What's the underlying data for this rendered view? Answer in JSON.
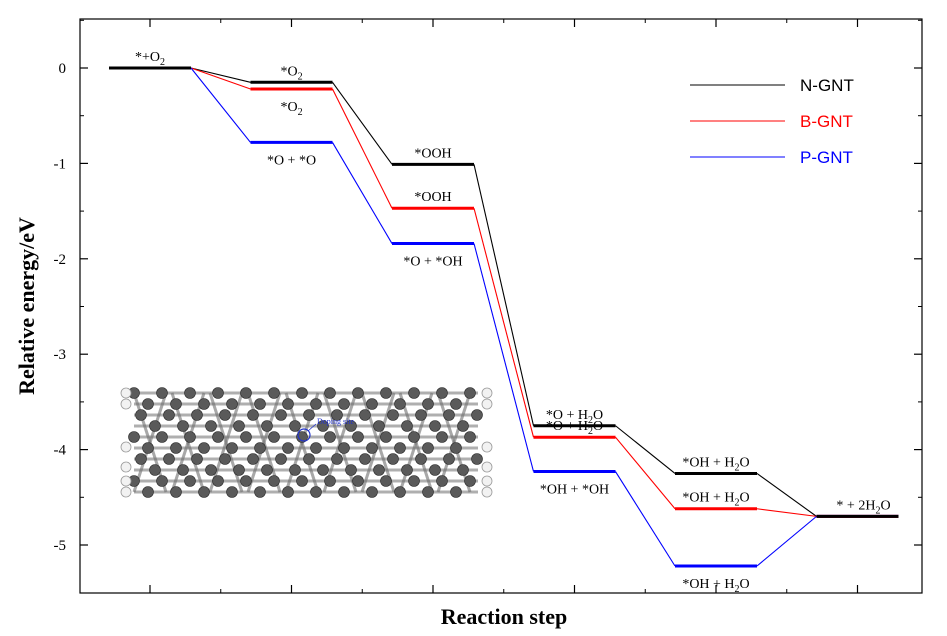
{
  "chart_data": {
    "type": "line",
    "xlabel": "Reaction step",
    "ylabel": "Relative energy/eV",
    "ylim": [
      -5.5,
      0.5
    ],
    "yticks": [
      0,
      -1,
      -2,
      -3,
      -4,
      -5
    ],
    "ytick_labels": [
      "0",
      "-1",
      "-2",
      "-3",
      "-4",
      "-5"
    ],
    "step_count": 6,
    "series": [
      {
        "name": "N-GNT",
        "color": "#000000",
        "values": [
          0,
          -0.15,
          -1.01,
          -3.75,
          -4.25,
          -4.7
        ]
      },
      {
        "name": "B-GNT",
        "color": "#ff0000",
        "values": [
          0,
          -0.22,
          -1.47,
          -3.87,
          -4.62,
          -4.7
        ]
      },
      {
        "name": "P-GNT",
        "color": "#0000ff",
        "values": [
          0,
          -0.78,
          -1.84,
          -4.23,
          -5.22,
          -4.7
        ]
      }
    ],
    "legend_position": "top-right",
    "grid": false,
    "annotations": [
      {
        "step": 0,
        "series": 0,
        "base": "*+O",
        "sub": "2",
        "tail": ""
      },
      {
        "step": 1,
        "series": 0,
        "base": "*O",
        "sub": "2",
        "tail": ""
      },
      {
        "step": 1,
        "series": 1,
        "base": "*O",
        "sub": "2",
        "tail": ""
      },
      {
        "step": 1,
        "series": 2,
        "base": "*O + *O",
        "sub": "",
        "tail": ""
      },
      {
        "step": 2,
        "series": 0,
        "base": "*OOH",
        "sub": "",
        "tail": ""
      },
      {
        "step": 2,
        "series": 1,
        "base": "*OOH",
        "sub": "",
        "tail": ""
      },
      {
        "step": 2,
        "series": 2,
        "base": "*O + *OH",
        "sub": "",
        "tail": ""
      },
      {
        "step": 3,
        "series": 0,
        "base": "*O + H",
        "sub": "2",
        "tail": "O"
      },
      {
        "step": 3,
        "series": 1,
        "base": "*O + H",
        "sub": "2",
        "tail": "O"
      },
      {
        "step": 3,
        "series": 2,
        "base": "*OH + *OH",
        "sub": "",
        "tail": ""
      },
      {
        "step": 4,
        "series": 0,
        "base": "*OH + H",
        "sub": "2",
        "tail": "O"
      },
      {
        "step": 4,
        "series": 1,
        "base": "*OH + H",
        "sub": "2",
        "tail": "O"
      },
      {
        "step": 4,
        "series": 2,
        "base": "*OH + H",
        "sub": "2",
        "tail": "O"
      },
      {
        "step": 5,
        "series": 0,
        "base": "* + 2H",
        "sub": "2",
        "tail": "O"
      }
    ]
  },
  "inset": {
    "label": "Doping site"
  }
}
